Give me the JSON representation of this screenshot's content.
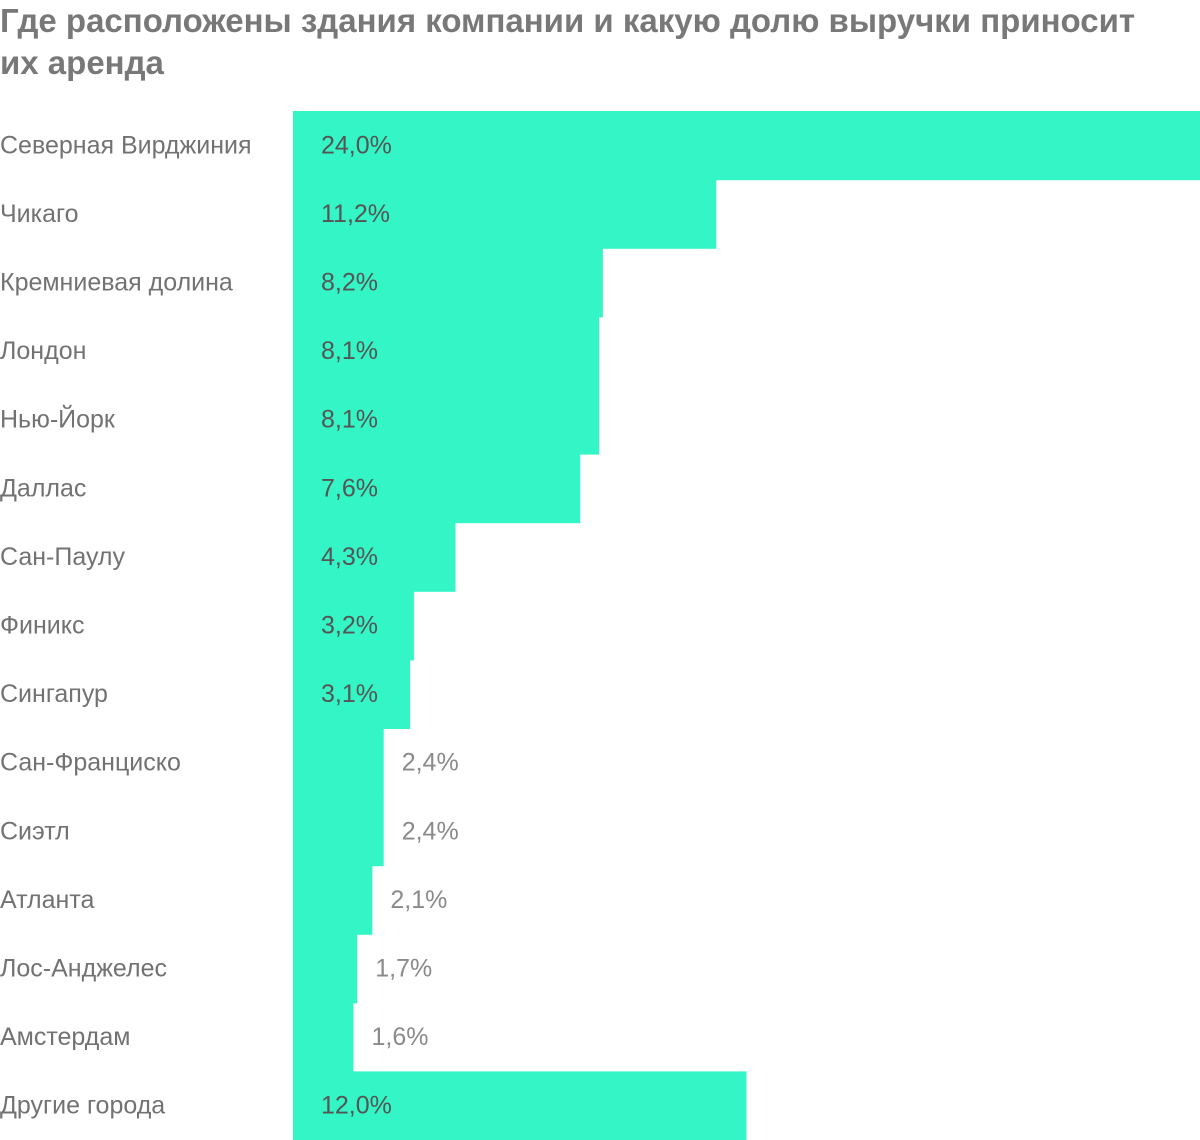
{
  "chart_data": {
    "type": "bar",
    "orientation": "horizontal",
    "title": "Где расположены здания компании и какую долю выручки приносит их аренда",
    "xlabel": "",
    "ylabel": "",
    "unit": "%",
    "xlim": [
      0,
      24
    ],
    "grid": false,
    "legend": "none",
    "categories": [
      "Северная Вирджиния",
      "Чикаго",
      "Кремниевая долина",
      "Лондон",
      "Нью-Йорк",
      "Даллас",
      "Сан-Паулу",
      "Финикс",
      "Сингапур",
      "Сан-Франциско",
      "Сиэтл",
      "Атланта",
      "Лос-Анджелес",
      "Амстердам",
      "Другие города"
    ],
    "values": [
      24.0,
      11.2,
      8.2,
      8.1,
      8.1,
      7.6,
      4.3,
      3.2,
      3.1,
      2.4,
      2.4,
      2.1,
      1.7,
      1.6,
      12.0
    ],
    "value_labels": [
      "24,0%",
      "11,2%",
      "8,2%",
      "8,1%",
      "8,1%",
      "7,6%",
      "4,3%",
      "3,2%",
      "3,1%",
      "2,4%",
      "2,4%",
      "2,1%",
      "1,7%",
      "1,6%",
      "12,0%"
    ]
  },
  "colors": {
    "bar": "#33f5c5",
    "category_text": "#727272",
    "value_text_inside": "#555555",
    "value_text_outside": "#8a8a8a",
    "title": "#787878"
  }
}
